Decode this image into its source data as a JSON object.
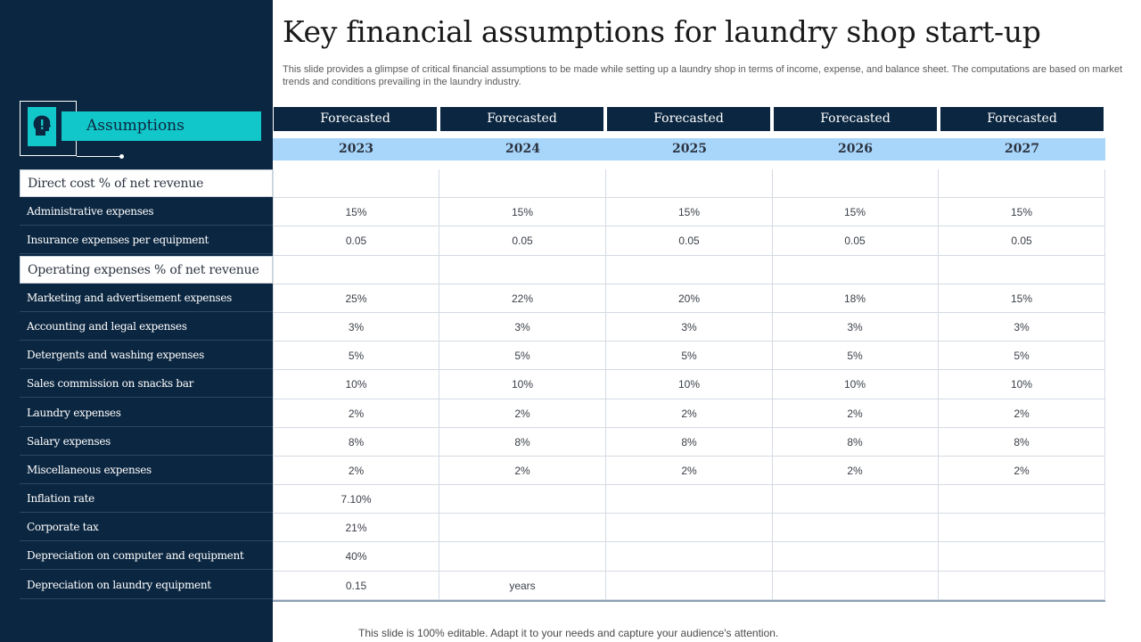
{
  "title": "Key financial assumptions for laundry shop start-up",
  "subtitle": "This slide provides a glimpse of critical financial assumptions to be made while setting up a laundry shop in terms of income, expense, and balance sheet. The computations are based on market trends and conditions prevailing in the laundry industry.",
  "assumptions_label": "Assumptions",
  "forecast_label": "Forecasted",
  "years": [
    "2023",
    "2024",
    "2025",
    "2026",
    "2027"
  ],
  "rows": [
    {
      "label": "Direct cost % of net revenue",
      "section": true,
      "values": [
        "",
        "",
        "",
        "",
        ""
      ]
    },
    {
      "label": "Administrative expenses",
      "values": [
        "15%",
        "15%",
        "15%",
        "15%",
        "15%"
      ]
    },
    {
      "label": "Insurance expenses per equipment",
      "values": [
        "0.05",
        "0.05",
        "0.05",
        "0.05",
        "0.05"
      ]
    },
    {
      "label": "Operating expenses % of net revenue",
      "section": true,
      "values": [
        "",
        "",
        "",
        "",
        ""
      ]
    },
    {
      "label": "Marketing and advertisement expenses",
      "values": [
        "25%",
        "22%",
        "20%",
        "18%",
        "15%"
      ]
    },
    {
      "label": "Accounting and legal expenses",
      "values": [
        "3%",
        "3%",
        "3%",
        "3%",
        "3%"
      ]
    },
    {
      "label": "Detergents and washing expenses",
      "values": [
        "5%",
        "5%",
        "5%",
        "5%",
        "5%"
      ]
    },
    {
      "label": "Sales commission on snacks bar",
      "values": [
        "10%",
        "10%",
        "10%",
        "10%",
        "10%"
      ]
    },
    {
      "label": "Laundry expenses",
      "values": [
        "2%",
        "2%",
        "2%",
        "2%",
        "2%"
      ]
    },
    {
      "label": "Salary expenses",
      "values": [
        "8%",
        "8%",
        "8%",
        "8%",
        "8%"
      ]
    },
    {
      "label": "Miscellaneous expenses",
      "values": [
        "2%",
        "2%",
        "2%",
        "2%",
        "2%"
      ]
    },
    {
      "label": "Inflation rate",
      "values": [
        "7.10%",
        "",
        "",
        "",
        ""
      ]
    },
    {
      "label": "Corporate tax",
      "values": [
        "21%",
        "",
        "",
        "",
        ""
      ]
    },
    {
      "label": "Depreciation on computer and equipment",
      "values": [
        "40%",
        "",
        "",
        "",
        ""
      ]
    },
    {
      "label": "Depreciation on laundry equipment",
      "values": [
        "0.15",
        "years",
        "",
        "",
        ""
      ]
    }
  ],
  "footer": "This slide is 100% editable. Adapt it to your needs and capture your audience's attention.",
  "colors": {
    "navy": "#0b2640",
    "teal": "#12c7c9",
    "light_blue": "#a8d6fb"
  },
  "icons": {
    "assumptions": "head-exclamation-icon"
  }
}
